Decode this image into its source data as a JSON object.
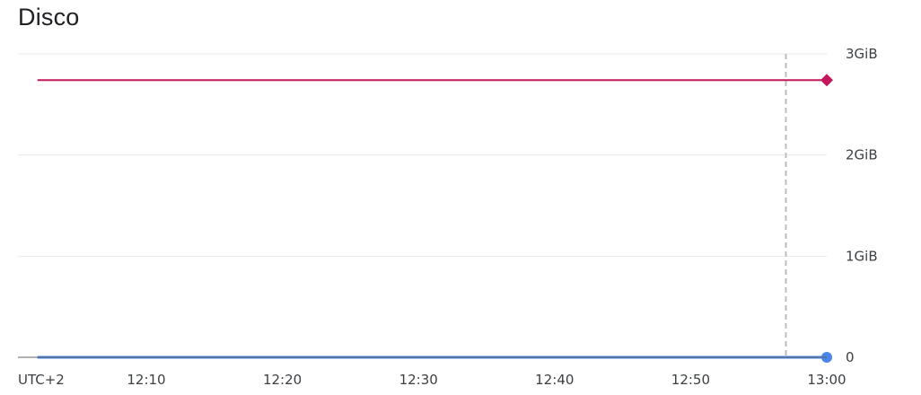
{
  "chart_data": {
    "title": "Disco",
    "type": "line",
    "timezone_label": "UTC+2",
    "x_start": "12:02",
    "x_end": "13:00",
    "x_ticks": [
      "12:10",
      "12:20",
      "12:30",
      "12:40",
      "12:50",
      "13:00"
    ],
    "y_ticks": [
      "0",
      "1GiB",
      "2GiB",
      "3GiB"
    ],
    "ylim": [
      0,
      3
    ],
    "y_unit": "GiB",
    "cursor_time": "12:57",
    "grid": true,
    "series": [
      {
        "color": "#c2185b",
        "marker": "diamond",
        "points": [
          {
            "x": "12:02",
            "y": 2.74
          },
          {
            "x": "13:00",
            "y": 2.74
          }
        ]
      },
      {
        "color": "#4a86e8",
        "marker": "circle",
        "points": [
          {
            "x": "12:02",
            "y": 0.0
          },
          {
            "x": "13:00",
            "y": 0.0
          }
        ]
      }
    ]
  }
}
